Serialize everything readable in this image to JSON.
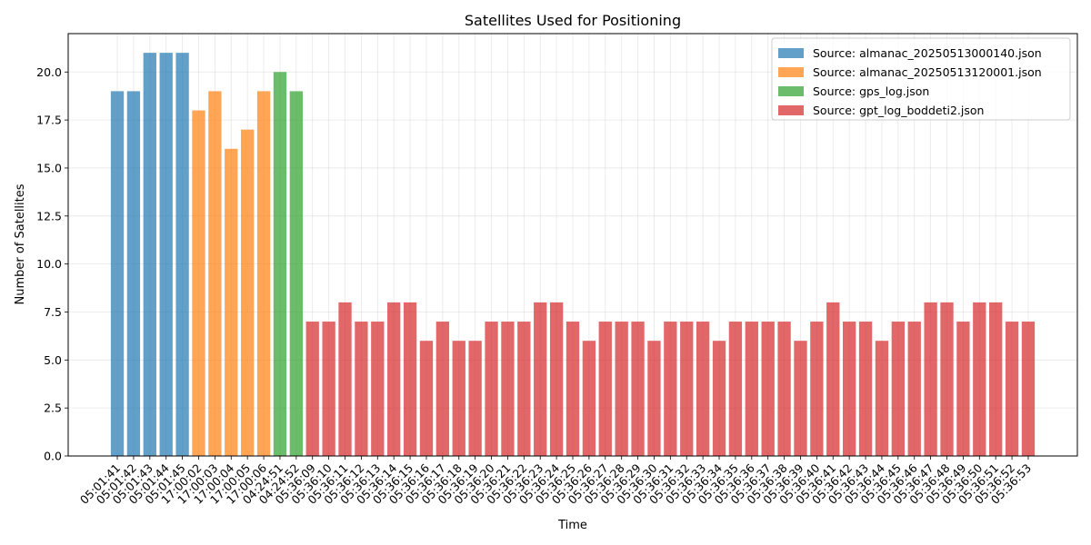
{
  "chart_data": {
    "type": "bar",
    "title": "Satellites Used for Positioning",
    "xlabel": "Time",
    "ylabel": "Number of Satellites",
    "ylim": [
      0,
      22
    ],
    "yticks": [
      "0.0",
      "2.5",
      "5.0",
      "7.5",
      "10.0",
      "12.5",
      "15.0",
      "17.5",
      "20.0"
    ],
    "grid": true,
    "legend_position": "top-right",
    "series": [
      {
        "name": "Source: almanac_20250513000140.json",
        "color": "#1f77b4",
        "categories": [
          "05:01:41",
          "05:01:42",
          "05:01:43",
          "05:01:44",
          "05:01:45"
        ],
        "values": [
          19,
          19,
          21,
          21,
          21
        ]
      },
      {
        "name": "Source: almanac_20250513120001.json",
        "color": "#ff7f0e",
        "categories": [
          "17:00:02",
          "17:00:03",
          "17:00:04",
          "17:00:05",
          "17:00:06"
        ],
        "values": [
          18,
          19,
          16,
          17,
          19
        ]
      },
      {
        "name": "Source: gps_log.json",
        "color": "#2ca02c",
        "categories": [
          "04:24:51",
          "04:24:52"
        ],
        "values": [
          20,
          19
        ]
      },
      {
        "name": "Source: gpt_log_boddeti2.json",
        "color": "#d62728",
        "categories": [
          "05:36:09",
          "05:36:10",
          "05:36:11",
          "05:36:12",
          "05:36:13",
          "05:36:14",
          "05:36:15",
          "05:36:16",
          "05:36:17",
          "05:36:18",
          "05:36:19",
          "05:36:20",
          "05:36:21",
          "05:36:22",
          "05:36:23",
          "05:36:24",
          "05:36:25",
          "05:36:26",
          "05:36:27",
          "05:36:28",
          "05:36:29",
          "05:36:30",
          "05:36:31",
          "05:36:32",
          "05:36:33",
          "05:36:34",
          "05:36:35",
          "05:36:36",
          "05:36:37",
          "05:36:38",
          "05:36:39",
          "05:36:40",
          "05:36:41",
          "05:36:42",
          "05:36:43",
          "05:36:44",
          "05:36:45",
          "05:36:46",
          "05:36:47",
          "05:36:48",
          "05:36:49",
          "05:36:50",
          "05:36:51",
          "05:36:52",
          "05:36:53"
        ],
        "values": [
          7,
          7,
          8,
          7,
          7,
          8,
          8,
          6,
          7,
          6,
          6,
          7,
          7,
          7,
          8,
          8,
          7,
          6,
          7,
          7,
          7,
          6,
          7,
          7,
          7,
          6,
          7,
          7,
          7,
          7,
          6,
          7,
          8,
          7,
          7,
          6,
          7,
          7,
          8,
          8,
          7,
          8,
          8,
          7,
          7
        ]
      }
    ]
  }
}
